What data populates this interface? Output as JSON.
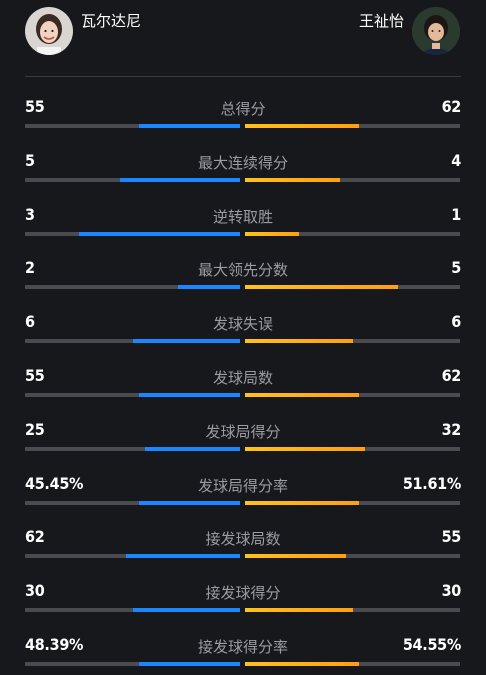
{
  "players": {
    "left": {
      "name": "瓦尔达尼"
    },
    "right": {
      "name": "王祉怡"
    }
  },
  "stats": [
    {
      "label": "总得分",
      "left": "55",
      "right": "62",
      "left_share": 0.47,
      "right_share": 0.53
    },
    {
      "label": "最大连续得分",
      "left": "5",
      "right": "4",
      "left_share": 0.56,
      "right_share": 0.44
    },
    {
      "label": "逆转取胜",
      "left": "3",
      "right": "1",
      "left_share": 0.75,
      "right_share": 0.25
    },
    {
      "label": "最大领先分数",
      "left": "2",
      "right": "5",
      "left_share": 0.29,
      "right_share": 0.71
    },
    {
      "label": "发球失误",
      "left": "6",
      "right": "6",
      "left_share": 0.5,
      "right_share": 0.5
    },
    {
      "label": "发球局数",
      "left": "55",
      "right": "62",
      "left_share": 0.47,
      "right_share": 0.53
    },
    {
      "label": "发球局得分",
      "left": "25",
      "right": "32",
      "left_share": 0.44,
      "right_share": 0.56
    },
    {
      "label": "发球局得分率",
      "left": "45.45%",
      "right": "51.61%",
      "left_share": 0.47,
      "right_share": 0.53
    },
    {
      "label": "接发球局数",
      "left": "62",
      "right": "55",
      "left_share": 0.53,
      "right_share": 0.47
    },
    {
      "label": "接发球得分",
      "left": "30",
      "right": "30",
      "left_share": 0.5,
      "right_share": 0.5
    },
    {
      "label": "接发球得分率",
      "left": "48.39%",
      "right": "54.55%",
      "left_share": 0.47,
      "right_share": 0.53
    }
  ],
  "colors": {
    "left_bar": "#1a86ff",
    "right_bar": "#ffb01a",
    "track": "#4a4b50",
    "background": "#17181b"
  }
}
